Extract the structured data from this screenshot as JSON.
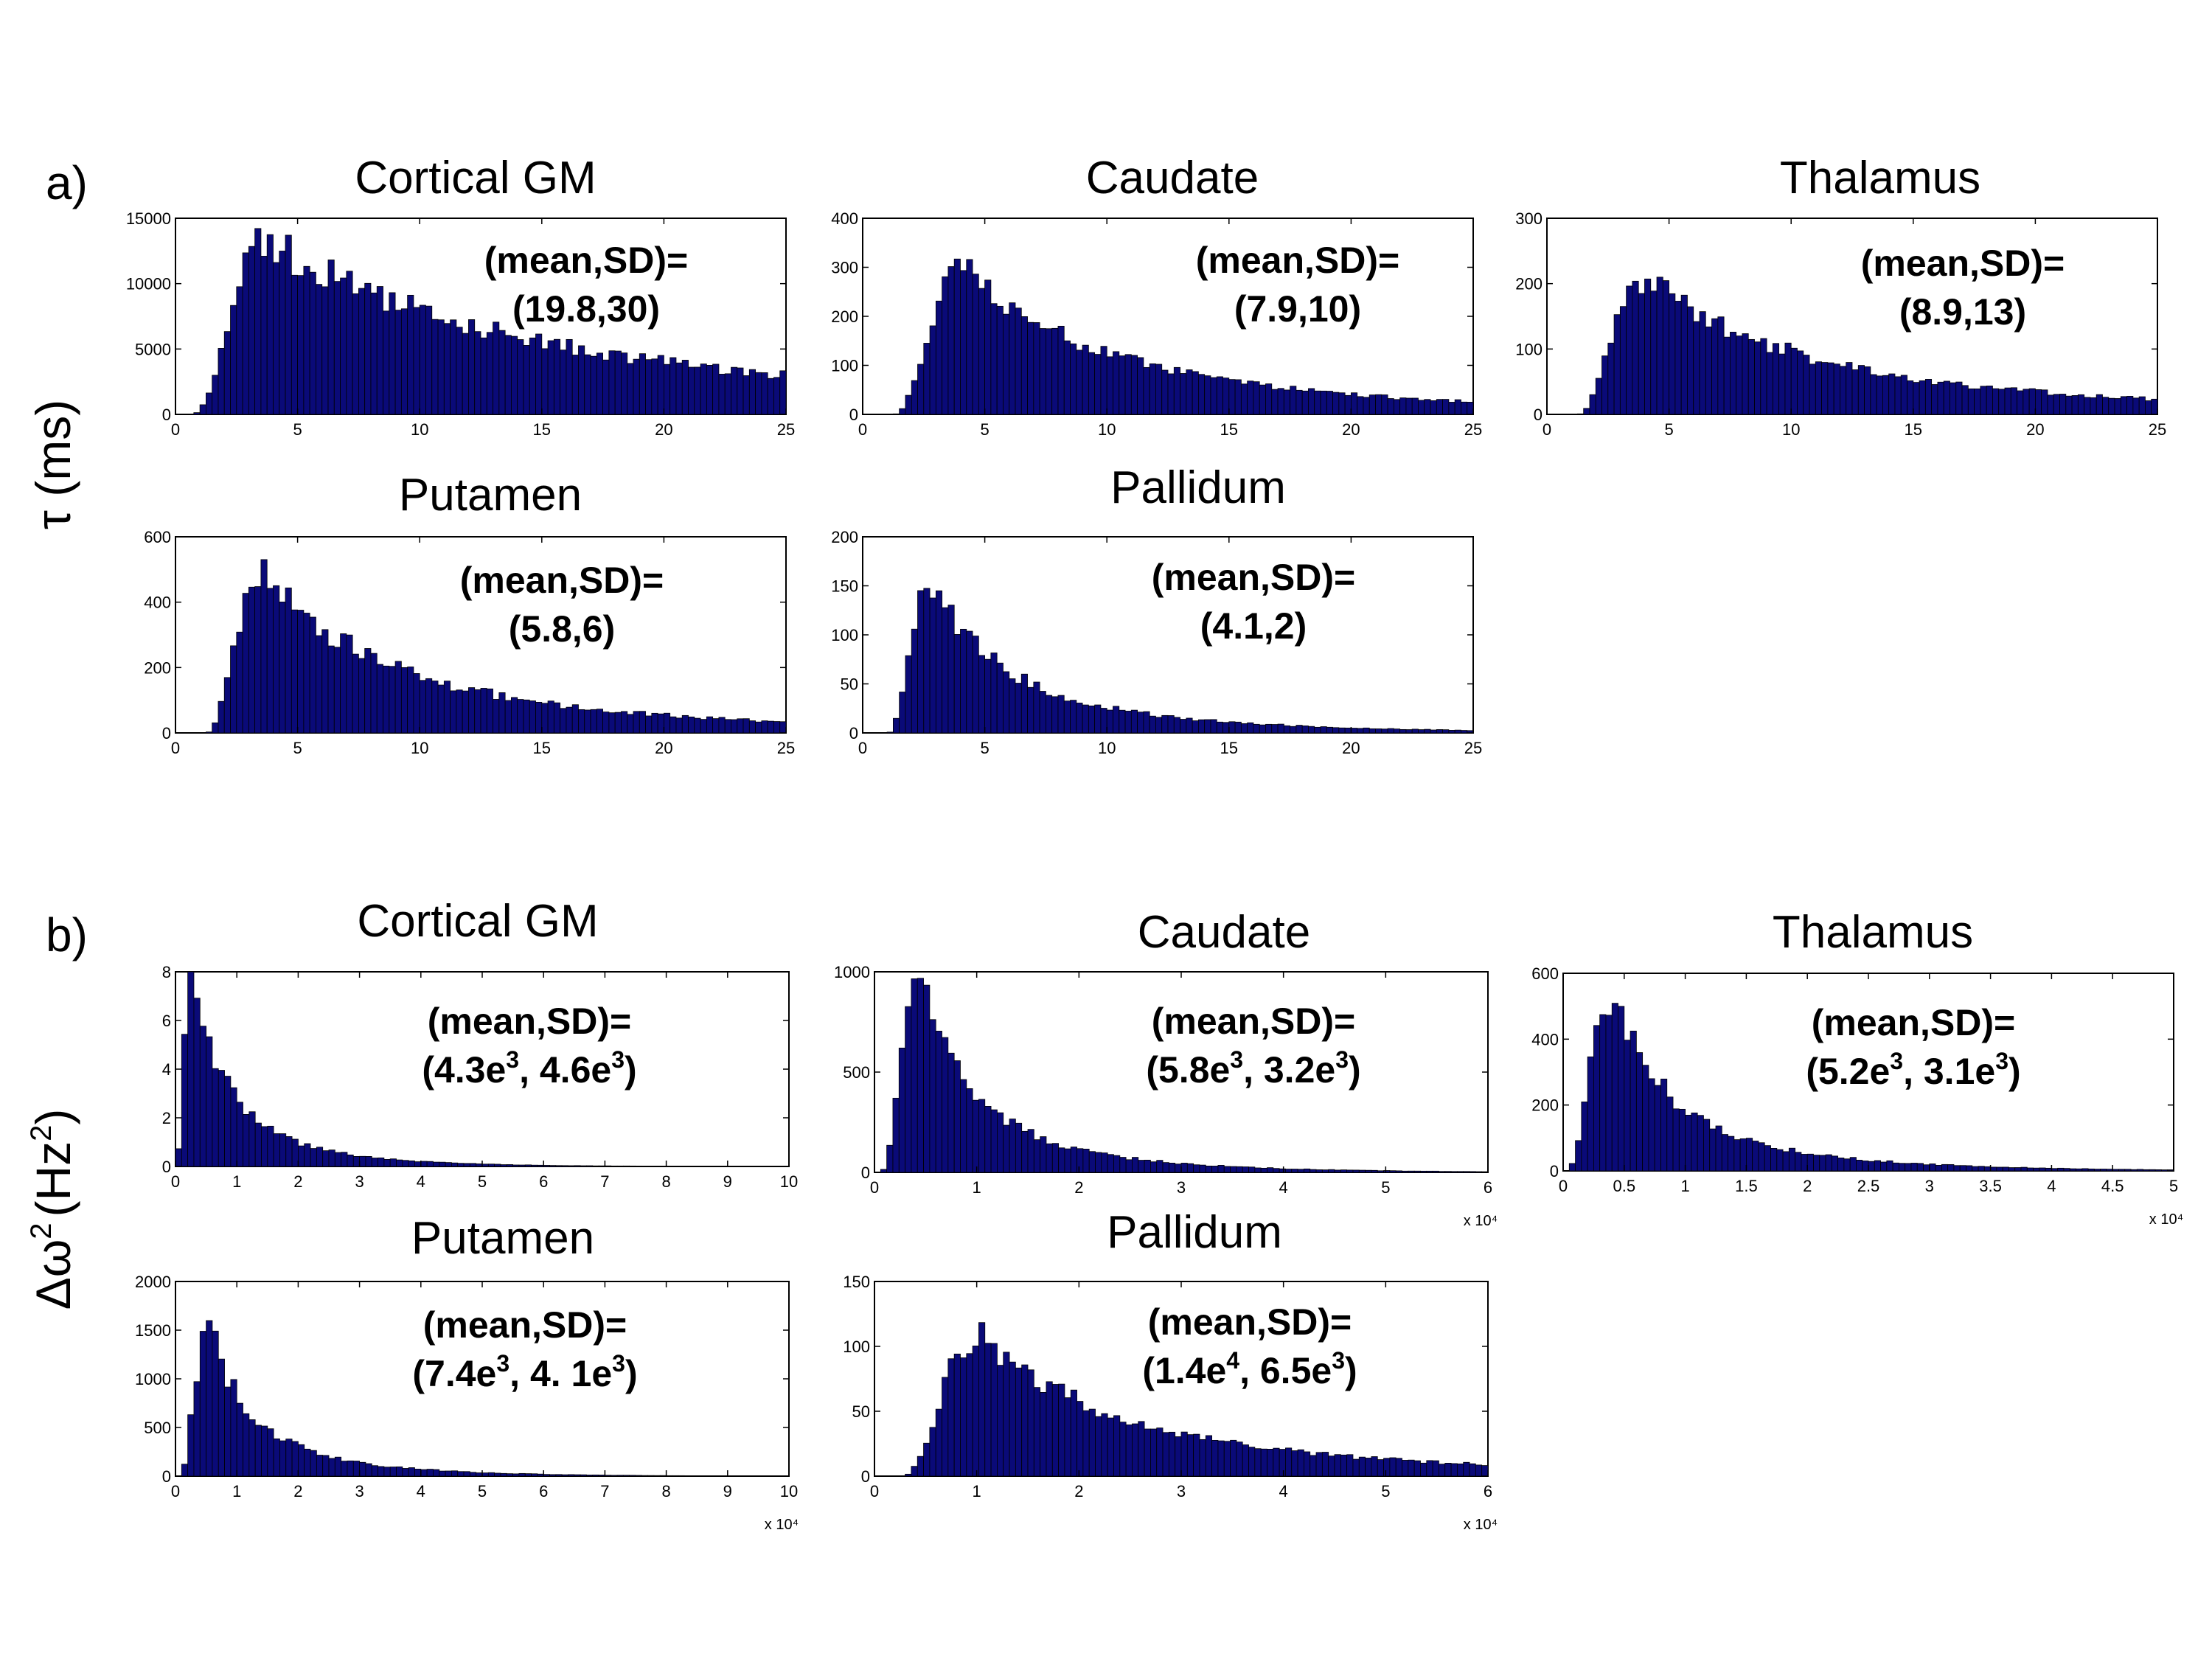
{
  "figure": {
    "panel_a_label": "a)",
    "panel_b_label": "b)",
    "ylabel_a": "τ (ms)",
    "ylabel_b_main": "Δω",
    "ylabel_b_exp": "2",
    "ylabel_b_unit": "(Hz",
    "ylabel_b_unit_exp": "2",
    "ylabel_b_close": ")",
    "bar_color": "#0a0a78"
  },
  "chart_data": [
    {
      "id": "a1",
      "type": "bar",
      "title": "Cortical GM",
      "ann_line1": "(mean,SD)=",
      "ann_line2": "(19.8,30)",
      "xlim": [
        0,
        25
      ],
      "ylim": [
        0,
        15000
      ],
      "xticks": [
        0,
        5,
        10,
        15,
        20,
        25
      ],
      "yticks": [
        0,
        5000,
        10000,
        15000
      ],
      "bin_width": 0.25,
      "dist": {
        "mode": 3.8,
        "peak": 13200,
        "tail": 25,
        "start": 0.6
      }
    },
    {
      "id": "a2",
      "type": "bar",
      "title": "Caudate",
      "ann_line1": "(mean,SD)=",
      "ann_line2": "(7.9,10)",
      "xlim": [
        0,
        25
      ],
      "ylim": [
        0,
        400
      ],
      "xticks": [
        0,
        5,
        10,
        15,
        20,
        25
      ],
      "yticks": [
        0,
        100,
        200,
        300,
        400
      ],
      "bin_width": 0.25,
      "dist": {
        "mode": 4.2,
        "peak": 300,
        "tail": 13,
        "start": 1.2
      }
    },
    {
      "id": "a3",
      "type": "bar",
      "title": "Thalamus",
      "ann_line1": "(mean,SD)=",
      "ann_line2": "(8.9,13)",
      "xlim": [
        0,
        25
      ],
      "ylim": [
        0,
        300
      ],
      "xticks": [
        0,
        5,
        10,
        15,
        20,
        25
      ],
      "yticks": [
        0,
        100,
        200,
        300
      ],
      "bin_width": 0.25,
      "dist": {
        "mode": 4.0,
        "peak": 210,
        "tail": 15,
        "start": 1.2
      }
    },
    {
      "id": "a4",
      "type": "bar",
      "title": "Putamen",
      "ann_line1": "(mean,SD)=",
      "ann_line2": "(5.8,6)",
      "xlim": [
        0,
        25
      ],
      "ylim": [
        0,
        600
      ],
      "xticks": [
        0,
        5,
        10,
        15,
        20,
        25
      ],
      "yticks": [
        0,
        200,
        400,
        600
      ],
      "bin_width": 0.25,
      "dist": {
        "mode": 3.6,
        "peak": 480,
        "tail": 12,
        "start": 1.2
      }
    },
    {
      "id": "a5",
      "type": "bar",
      "title": "Pallidum",
      "ann_line1": "(mean,SD)=",
      "ann_line2": "(4.1,2)",
      "xlim": [
        0,
        25
      ],
      "ylim": [
        0,
        200
      ],
      "xticks": [
        0,
        5,
        10,
        15,
        20,
        25
      ],
      "yticks": [
        0,
        50,
        100,
        150,
        200
      ],
      "bin_width": 0.25,
      "dist": {
        "mode": 2.8,
        "peak": 150,
        "tail": 7,
        "start": 1.0
      }
    },
    {
      "id": "b1",
      "type": "bar",
      "title": "Cortical GM",
      "ann_line1": "(mean,SD)=",
      "ann_line2": "(4.3e",
      "ann_sup1": "3",
      "ann_mid": ", 4.6e",
      "ann_sup2": "3",
      "ann_end": ")",
      "xlim": [
        0,
        10
      ],
      "ylim": [
        0,
        8
      ],
      "xticks": [
        0,
        1,
        2,
        3,
        4,
        5,
        6,
        7,
        8,
        9,
        10
      ],
      "yticks": [
        0,
        2,
        4,
        6,
        8
      ],
      "multiplier": "",
      "bin_width": 0.1,
      "dist": {
        "mode": 0.25,
        "peak": 7.6,
        "tail": 1.4,
        "start": 0.0
      }
    },
    {
      "id": "b2",
      "type": "bar",
      "title": "Caudate",
      "ann_line1": "(mean,SD)=",
      "ann_line2": "(5.8e",
      "ann_sup1": "3",
      "ann_mid": ", 3.2e",
      "ann_sup2": "3",
      "ann_end": ")",
      "xlim": [
        0,
        6
      ],
      "ylim": [
        0,
        1000
      ],
      "xticks": [
        0,
        1,
        2,
        3,
        4,
        5,
        6
      ],
      "yticks": [
        0,
        500,
        1000
      ],
      "multiplier": "x 10⁴",
      "bin_width": 0.06,
      "dist": {
        "mode": 0.45,
        "peak": 920,
        "tail": 1.2,
        "start": 0.05
      }
    },
    {
      "id": "b3",
      "type": "bar",
      "title": "Thalamus",
      "ann_line1": "(mean,SD)=",
      "ann_line2": "(5.2e",
      "ann_sup1": "3",
      "ann_mid": ", 3.1e",
      "ann_sup2": "3",
      "ann_end": ")",
      "xlim": [
        0,
        5
      ],
      "ylim": [
        0,
        600
      ],
      "xticks": [
        0,
        0.5,
        1,
        1.5,
        2,
        2.5,
        3,
        3.5,
        4,
        4.5,
        5
      ],
      "yticks": [
        0,
        200,
        400,
        600
      ],
      "multiplier": "x 10⁴",
      "bin_width": 0.05,
      "dist": {
        "mode": 0.4,
        "peak": 530,
        "tail": 1.1,
        "start": 0.02
      }
    },
    {
      "id": "b4",
      "type": "bar",
      "title": "Putamen",
      "ann_line1": "(mean,SD)=",
      "ann_line2": "(7.4e",
      "ann_sup1": "3",
      "ann_mid": ", 4. 1e",
      "ann_sup2": "3",
      "ann_end": ")",
      "xlim": [
        0,
        10
      ],
      "ylim": [
        0,
        2000
      ],
      "xticks": [
        0,
        1,
        2,
        3,
        4,
        5,
        6,
        7,
        8,
        9,
        10
      ],
      "yticks": [
        0,
        500,
        1000,
        1500,
        2000
      ],
      "multiplier": "x 10⁴",
      "bin_width": 0.1,
      "dist": {
        "mode": 0.55,
        "peak": 1500,
        "tail": 1.6,
        "start": 0.05
      }
    },
    {
      "id": "b5",
      "type": "bar",
      "title": "Pallidum",
      "ann_line1": "(mean,SD)=",
      "ann_line2": "(1.4e",
      "ann_sup1": "4",
      "ann_mid": ", 6.5e",
      "ann_sup2": "3",
      "ann_end": ")",
      "xlim": [
        0,
        6
      ],
      "ylim": [
        0,
        150
      ],
      "xticks": [
        0,
        1,
        2,
        3,
        4,
        5,
        6
      ],
      "yticks": [
        0,
        50,
        100,
        150
      ],
      "multiplier": "x 10⁴",
      "bin_width": 0.06,
      "dist": {
        "mode": 1.05,
        "peak": 108,
        "tail": 3.0,
        "start": 0.25
      }
    }
  ]
}
